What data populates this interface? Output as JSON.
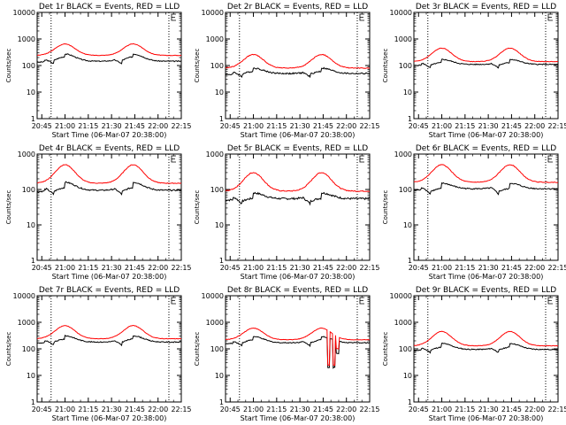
{
  "figure": {
    "title_template": "Det {det} BLACK = Events, RED = LLD",
    "ylabel": "Counts/sec",
    "xlabel": "Start Time (06-Mar-07 20:38:00)"
  },
  "colors": {
    "black_series": "#000000",
    "red_series": "#ff0000",
    "axis": "#000000"
  },
  "chart_data": [
    {
      "type": "line",
      "det": "1r",
      "title": "Det 1r BLACK = Events, RED = LLD",
      "yscale": "log",
      "ylim": [
        1,
        10000
      ],
      "yticks": [
        "1",
        "10",
        "100",
        "1000",
        "10000"
      ],
      "xlim_min": [
        4,
        97
      ],
      "xticks": [
        "20:45",
        "21:00",
        "21:15",
        "21:30",
        "21:45",
        "22:00",
        "22:15"
      ],
      "xlabel": "Start Time (06-Mar-07 20:38:00)",
      "ylabel": "Counts/sec",
      "vlines_min": [
        13,
        89
      ],
      "e_marker_min": 89,
      "series": [
        {
          "name": "BLACK = Events",
          "baseline": 145,
          "peak": 270,
          "drop": 0.78,
          "noise": 0.04
        },
        {
          "name": "RED = LLD",
          "baseline": 240,
          "peak": 650,
          "drop": 1,
          "noise": 0.02
        }
      ]
    },
    {
      "type": "line",
      "det": "2r",
      "title": "Det 2r BLACK = Events, RED = LLD",
      "yscale": "log",
      "ylim": [
        1,
        10000
      ],
      "yticks": [
        "1",
        "10",
        "100",
        "1000",
        "10000"
      ],
      "xlim_min": [
        4,
        97
      ],
      "xticks": [
        "20:45",
        "21:00",
        "21:15",
        "21:30",
        "21:45",
        "22:00",
        "22:15"
      ],
      "xlabel": "Start Time (06-Mar-07 20:38:00)",
      "ylabel": "Counts/sec",
      "vlines_min": [
        13,
        89
      ],
      "e_marker_min": 89,
      "series": [
        {
          "name": "BLACK = Events",
          "baseline": 50,
          "peak": 80,
          "drop": 0.75,
          "noise": 0.06
        },
        {
          "name": "RED = LLD",
          "baseline": 80,
          "peak": 260,
          "drop": 1,
          "noise": 0.03
        }
      ]
    },
    {
      "type": "line",
      "det": "3r",
      "title": "Det 3r BLACK = Events, RED = LLD",
      "yscale": "log",
      "ylim": [
        1,
        10000
      ],
      "yticks": [
        "1",
        "10",
        "100",
        "1000",
        "10000"
      ],
      "xlim_min": [
        4,
        97
      ],
      "xticks": [
        "20:45",
        "21:00",
        "21:15",
        "21:30",
        "21:45",
        "22:00",
        "22:15"
      ],
      "xlabel": "Start Time (06-Mar-07 20:38:00)",
      "ylabel": "Counts/sec",
      "vlines_min": [
        13,
        89
      ],
      "e_marker_min": 89,
      "series": [
        {
          "name": "BLACK = Events",
          "baseline": 110,
          "peak": 170,
          "drop": 0.75,
          "noise": 0.04
        },
        {
          "name": "RED = LLD",
          "baseline": 140,
          "peak": 450,
          "drop": 1,
          "noise": 0.02
        }
      ]
    },
    {
      "type": "line",
      "det": "4r",
      "title": "Det 4r BLACK = Events, RED = LLD",
      "yscale": "log",
      "ylim": [
        1,
        1000
      ],
      "yticks": [
        "1",
        "10",
        "100",
        "1000"
      ],
      "xlim_min": [
        4,
        97
      ],
      "xticks": [
        "20:45",
        "21:00",
        "21:15",
        "21:30",
        "21:45",
        "22:00",
        "22:15"
      ],
      "xlabel": "Start Time (06-Mar-07 20:38:00)",
      "ylabel": "Counts/sec",
      "vlines_min": [
        13,
        89
      ],
      "e_marker_min": 89,
      "series": [
        {
          "name": "BLACK = Events",
          "baseline": 95,
          "peak": 160,
          "drop": 0.7,
          "noise": 0.04
        },
        {
          "name": "RED = LLD",
          "baseline": 150,
          "peak": 500,
          "drop": 1,
          "noise": 0.02
        }
      ]
    },
    {
      "type": "line",
      "det": "5r",
      "title": "Det 5r BLACK = Events, RED = LLD",
      "yscale": "log",
      "ylim": [
        1,
        1000
      ],
      "yticks": [
        "1",
        "10",
        "100",
        "1000"
      ],
      "xlim_min": [
        4,
        97
      ],
      "xticks": [
        "20:45",
        "21:00",
        "21:15",
        "21:30",
        "21:45",
        "22:00",
        "22:15"
      ],
      "xlabel": "Start Time (06-Mar-07 20:38:00)",
      "ylabel": "Counts/sec",
      "vlines_min": [
        13,
        89
      ],
      "e_marker_min": 89,
      "series": [
        {
          "name": "BLACK = Events",
          "baseline": 55,
          "peak": 80,
          "drop": 0.7,
          "noise": 0.06
        },
        {
          "name": "RED = LLD",
          "baseline": 90,
          "peak": 300,
          "drop": 1,
          "noise": 0.03
        }
      ]
    },
    {
      "type": "line",
      "det": "6r",
      "title": "Det 6r BLACK = Events, RED = LLD",
      "yscale": "log",
      "ylim": [
        1,
        1000
      ],
      "yticks": [
        "1",
        "10",
        "100",
        "1000"
      ],
      "xlim_min": [
        4,
        97
      ],
      "xticks": [
        "20:45",
        "21:00",
        "21:15",
        "21:30",
        "21:45",
        "22:00",
        "22:15"
      ],
      "xlabel": "Start Time (06-Mar-07 20:38:00)",
      "ylabel": "Counts/sec",
      "vlines_min": [
        13,
        89
      ],
      "e_marker_min": 89,
      "series": [
        {
          "name": "BLACK = Events",
          "baseline": 105,
          "peak": 150,
          "drop": 0.7,
          "noise": 0.04
        },
        {
          "name": "RED = LLD",
          "baseline": 160,
          "peak": 500,
          "drop": 1,
          "noise": 0.02
        }
      ]
    },
    {
      "type": "line",
      "det": "7r",
      "title": "Det 7r BLACK = Events, RED = LLD",
      "yscale": "log",
      "ylim": [
        1,
        10000
      ],
      "yticks": [
        "1",
        "10",
        "100",
        "1000",
        "10000"
      ],
      "xlim_min": [
        4,
        97
      ],
      "xticks": [
        "20:45",
        "21:00",
        "21:15",
        "21:30",
        "21:45",
        "22:00",
        "22:15"
      ],
      "xlabel": "Start Time (06-Mar-07 20:38:00)",
      "ylabel": "Counts/sec",
      "vlines_min": [
        13,
        89
      ],
      "e_marker_min": 89,
      "series": [
        {
          "name": "BLACK = Events",
          "baseline": 180,
          "peak": 310,
          "drop": 0.75,
          "noise": 0.04
        },
        {
          "name": "RED = LLD",
          "baseline": 240,
          "peak": 750,
          "drop": 1,
          "noise": 0.02
        }
      ]
    },
    {
      "type": "line",
      "det": "8r",
      "title": "Det 8r BLACK = Events, RED = LLD",
      "yscale": "log",
      "ylim": [
        1,
        10000
      ],
      "yticks": [
        "1",
        "10",
        "100",
        "1000",
        "10000"
      ],
      "xlim_min": [
        4,
        97
      ],
      "xticks": [
        "20:45",
        "21:00",
        "21:15",
        "21:30",
        "21:45",
        "22:00",
        "22:15"
      ],
      "xlabel": "Start Time (06-Mar-07 20:38:00)",
      "ylabel": "Counts/sec",
      "vlines_min": [
        13,
        89
      ],
      "e_marker_min": 89,
      "anomaly": {
        "start_min": 70,
        "end_min": 77,
        "low": 22
      },
      "series": [
        {
          "name": "BLACK = Events",
          "baseline": 170,
          "peak": 290,
          "drop": 0.75,
          "noise": 0.04
        },
        {
          "name": "RED = LLD",
          "baseline": 220,
          "peak": 600,
          "drop": 1,
          "noise": 0.02
        }
      ]
    },
    {
      "type": "line",
      "det": "9r",
      "title": "Det 9r BLACK = Events, RED = LLD",
      "yscale": "log",
      "ylim": [
        1,
        10000
      ],
      "yticks": [
        "1",
        "10",
        "100",
        "1000",
        "10000"
      ],
      "xlim_min": [
        4,
        97
      ],
      "xticks": [
        "20:45",
        "21:00",
        "21:15",
        "21:30",
        "21:45",
        "22:00",
        "22:15"
      ],
      "xlabel": "Start Time (06-Mar-07 20:38:00)",
      "ylabel": "Counts/sec",
      "vlines_min": [
        13,
        89
      ],
      "e_marker_min": 89,
      "series": [
        {
          "name": "BLACK = Events",
          "baseline": 95,
          "peak": 160,
          "drop": 0.72,
          "noise": 0.04
        },
        {
          "name": "RED = LLD",
          "baseline": 130,
          "peak": 450,
          "drop": 1,
          "noise": 0.02
        }
      ]
    }
  ]
}
